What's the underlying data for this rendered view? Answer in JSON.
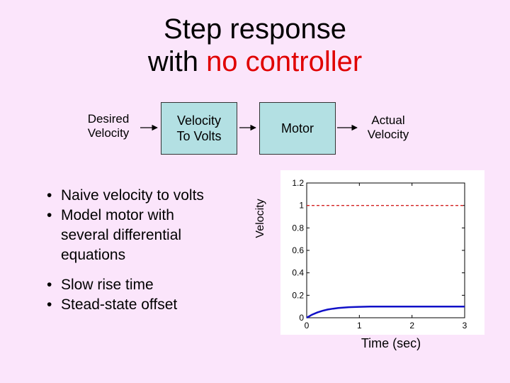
{
  "title": {
    "line1": "Step response",
    "line2_prefix": "with ",
    "line2_accent": "no controller"
  },
  "diagram": {
    "input_label": [
      "Desired",
      "Velocity"
    ],
    "block1": [
      "Velocity",
      "To Volts"
    ],
    "block2": "Motor",
    "output_label": [
      "Actual",
      "Velocity"
    ]
  },
  "bullets_group1": [
    "Naive velocity to volts",
    "Model motor with",
    "several differential",
    "equations"
  ],
  "bullets_group2": [
    "Slow rise time",
    "Stead-state offset"
  ],
  "colors": {
    "accent": "#e00000",
    "block_fill": "#b3e0e3",
    "response_line": "#1010c8",
    "setpoint_line": "#d42020"
  },
  "chart_data": {
    "type": "line",
    "xlabel": "Time (sec)",
    "ylabel": "Velocity",
    "xlim": [
      0,
      3
    ],
    "ylim": [
      0,
      1.2
    ],
    "xticks": [
      "0",
      "1",
      "2",
      "3"
    ],
    "yticks": [
      "0",
      "0.2",
      "0.4",
      "0.6",
      "0.8",
      "1",
      "1.2"
    ],
    "series": [
      {
        "style": "solid",
        "color": "#1010c8",
        "x": [
          0,
          0.1,
          0.2,
          0.3,
          0.4,
          0.5,
          0.6,
          0.8,
          1.0,
          1.2,
          1.5,
          2.0,
          2.5,
          3.0
        ],
        "y": [
          0,
          0.027,
          0.047,
          0.062,
          0.073,
          0.081,
          0.087,
          0.094,
          0.097,
          0.099,
          0.1,
          0.1,
          0.1,
          0.1
        ]
      },
      {
        "style": "dashed",
        "color": "#d42020",
        "x": [
          0,
          3
        ],
        "y": [
          1,
          1
        ]
      }
    ]
  }
}
